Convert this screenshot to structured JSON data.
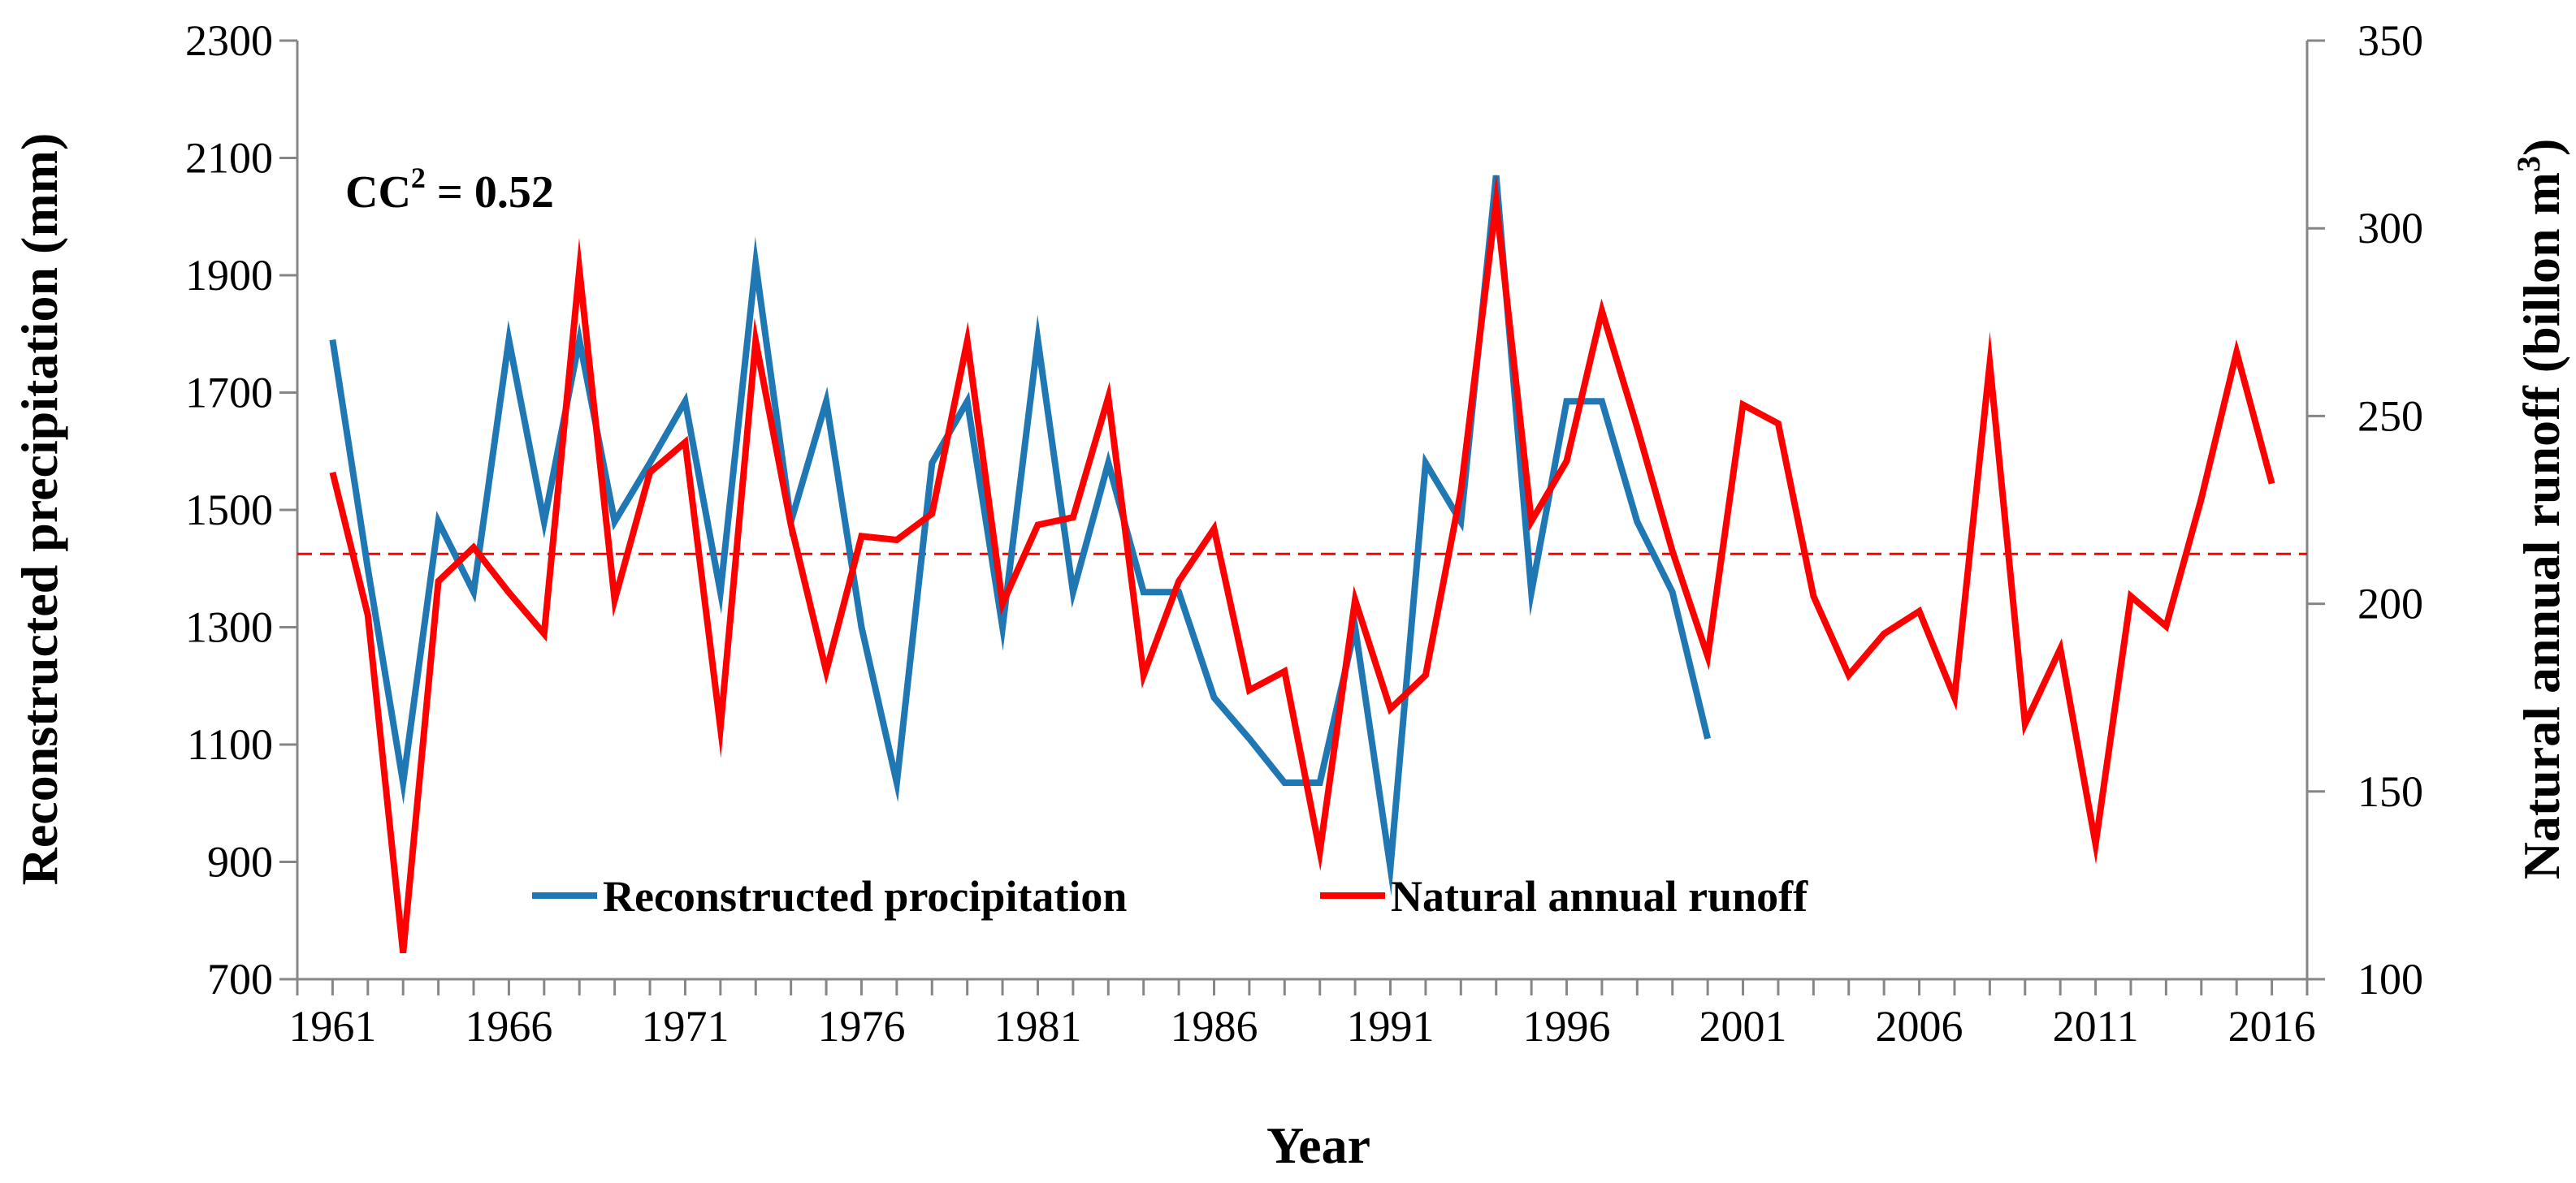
{
  "chart_data": {
    "type": "line",
    "title": "",
    "xlabel": "Year",
    "ylabel_left": "Reconstructed precipitation (mm)",
    "ylabel_right": "Natural annual runoff (billon m3)",
    "ylabel_right_base": "Natural annual runoff (billon m",
    "ylabel_right_sup": "3",
    "ylabel_right_close": ")",
    "annotation": {
      "base": "CC",
      "sup": "2",
      "eq": " = ",
      "value": "0.52"
    },
    "xlim": [
      1960,
      2017
    ],
    "ylim_left": [
      700,
      2300
    ],
    "ylim_right": [
      100,
      350
    ],
    "xticks": [
      1961,
      1966,
      1971,
      1976,
      1981,
      1986,
      1991,
      1996,
      2001,
      2006,
      2011,
      2016
    ],
    "yticks_left": [
      700,
      900,
      1100,
      1300,
      1500,
      1700,
      1900,
      2100,
      2300
    ],
    "yticks_right": [
      100,
      150,
      200,
      250,
      300,
      350
    ],
    "reference_line": {
      "axis": "left",
      "value": 1425,
      "color": "#ff0000",
      "style": "dashed"
    },
    "legend": {
      "position": "bottom-center"
    },
    "series": [
      {
        "name": "Reconstructed procipitation",
        "axis": "left",
        "color": "#1f77b4",
        "x": [
          1961,
          1962,
          1963,
          1964,
          1965,
          1966,
          1967,
          1968,
          1969,
          1970,
          1971,
          1972,
          1973,
          1974,
          1975,
          1976,
          1977,
          1978,
          1979,
          1980,
          1981,
          1982,
          1983,
          1984,
          1985,
          1986,
          1987,
          1988,
          1989,
          1990,
          1991,
          1992,
          1993,
          1994,
          1995,
          1996,
          1997,
          1998,
          1999,
          2000
        ],
        "values": [
          1790,
          1400,
          1035,
          1480,
          1360,
          1790,
          1480,
          1790,
          1480,
          1580,
          1685,
          1360,
          1920,
          1480,
          1685,
          1300,
          1035,
          1580,
          1685,
          1300,
          1790,
          1360,
          1580,
          1360,
          1360,
          1180,
          1110,
          1035,
          1035,
          1300,
          890,
          1580,
          1480,
          2070,
          1360,
          1685,
          1685,
          1480,
          1360,
          1110
        ]
      },
      {
        "name": "Natural annual runoff",
        "axis": "right",
        "color": "#ff0000",
        "x": [
          1961,
          1962,
          1963,
          1964,
          1965,
          1966,
          1967,
          1968,
          1969,
          1970,
          1971,
          1972,
          1973,
          1974,
          1975,
          1976,
          1977,
          1978,
          1979,
          1980,
          1981,
          1982,
          1983,
          1984,
          1985,
          1986,
          1987,
          1988,
          1989,
          1990,
          1991,
          1992,
          1993,
          1994,
          1995,
          1996,
          1997,
          1998,
          1999,
          2000,
          2001,
          2002,
          2003,
          2004,
          2005,
          2006,
          2007,
          2008,
          2009,
          2010,
          2011,
          2012,
          2013,
          2014,
          2015,
          2016
        ],
        "values": [
          235,
          197,
          107,
          206,
          215,
          203,
          192,
          289,
          201,
          235,
          243,
          167,
          270,
          221,
          182,
          218,
          217,
          224,
          270,
          200,
          221,
          223,
          255,
          181,
          206,
          220,
          177,
          182,
          134,
          201,
          172,
          181,
          230,
          307,
          222,
          238,
          278,
          247,
          214,
          186,
          253,
          248,
          202,
          181,
          192,
          198,
          175,
          264,
          168,
          188,
          136,
          202,
          194,
          228,
          267,
          232
        ]
      }
    ]
  }
}
